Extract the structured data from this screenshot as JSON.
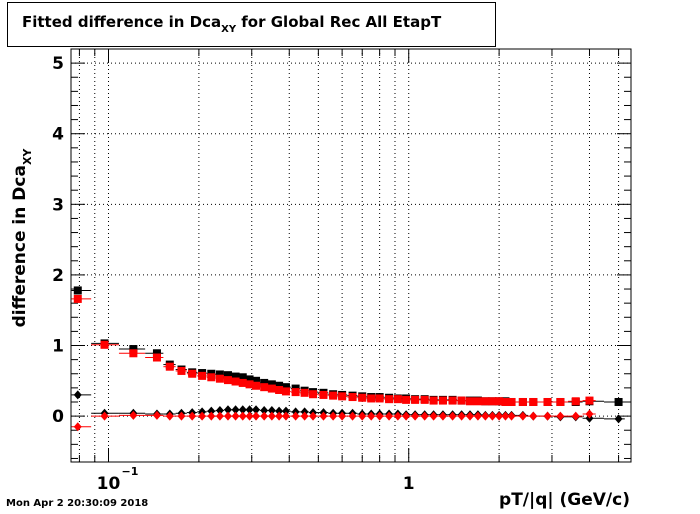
{
  "chart_data": {
    "type": "scatter",
    "title_main": "Fitted difference in Dca",
    "title_sub": "XY",
    "title_rest": " for Global Rec All EtapT",
    "ylabel_main": "difference in Dca",
    "ylabel_sub": "XY",
    "xlabel": "pT/|q| (GeV/c)",
    "x_scale": "log",
    "xlim": [
      0.075,
      5.5
    ],
    "ylim": [
      -0.65,
      5.2
    ],
    "grid": true,
    "y_ticks": [
      0,
      1,
      2,
      3,
      4,
      5
    ],
    "y_tick_labels": [
      "0",
      "1",
      "2",
      "3",
      "4",
      "5"
    ],
    "x_tick_labels": [
      {
        "value": 0.1,
        "base": "10",
        "exp": "−1"
      },
      {
        "value": 1,
        "base": "1",
        "exp": ""
      }
    ],
    "series": [
      {
        "marker": "square",
        "color": "#000000",
        "x": [
          0.079,
          0.097,
          0.121,
          0.145,
          0.16,
          0.175,
          0.19,
          0.205,
          0.22,
          0.235,
          0.25,
          0.265,
          0.28,
          0.295,
          0.31,
          0.33,
          0.35,
          0.37,
          0.39,
          0.42,
          0.45,
          0.48,
          0.52,
          0.56,
          0.6,
          0.65,
          0.7,
          0.75,
          0.8,
          0.86,
          0.92,
          0.98,
          1.05,
          1.13,
          1.21,
          1.3,
          1.4,
          1.5,
          1.6,
          1.7,
          1.8,
          1.9,
          2.0,
          2.1,
          2.2,
          2.4,
          2.6,
          2.9,
          3.2,
          3.6,
          4.0,
          5.0
        ],
        "y": [
          1.78,
          1.03,
          0.95,
          0.89,
          0.73,
          0.66,
          0.62,
          0.61,
          0.6,
          0.59,
          0.58,
          0.56,
          0.55,
          0.52,
          0.5,
          0.47,
          0.45,
          0.43,
          0.41,
          0.39,
          0.36,
          0.34,
          0.33,
          0.31,
          0.3,
          0.29,
          0.28,
          0.27,
          0.27,
          0.26,
          0.25,
          0.25,
          0.24,
          0.24,
          0.23,
          0.23,
          0.23,
          0.22,
          0.22,
          0.22,
          0.21,
          0.21,
          0.21,
          0.21,
          0.2,
          0.2,
          0.2,
          0.2,
          0.2,
          0.2,
          0.21,
          0.2
        ]
      },
      {
        "marker": "square",
        "color": "#ff0000",
        "x": [
          0.079,
          0.097,
          0.121,
          0.145,
          0.16,
          0.175,
          0.19,
          0.205,
          0.22,
          0.235,
          0.25,
          0.265,
          0.28,
          0.295,
          0.31,
          0.33,
          0.35,
          0.37,
          0.39,
          0.42,
          0.45,
          0.48,
          0.52,
          0.56,
          0.6,
          0.65,
          0.7,
          0.75,
          0.8,
          0.86,
          0.92,
          0.98,
          1.05,
          1.13,
          1.21,
          1.3,
          1.4,
          1.5,
          1.6,
          1.7,
          1.8,
          1.9,
          2.0,
          2.1,
          2.2,
          2.4,
          2.6,
          2.9,
          3.2,
          3.6,
          4.0
        ],
        "y": [
          1.66,
          1.01,
          0.89,
          0.83,
          0.7,
          0.64,
          0.6,
          0.57,
          0.55,
          0.53,
          0.51,
          0.49,
          0.47,
          0.45,
          0.43,
          0.41,
          0.39,
          0.37,
          0.35,
          0.34,
          0.33,
          0.31,
          0.3,
          0.29,
          0.28,
          0.27,
          0.26,
          0.25,
          0.25,
          0.24,
          0.24,
          0.23,
          0.23,
          0.23,
          0.22,
          0.22,
          0.22,
          0.22,
          0.21,
          0.21,
          0.21,
          0.21,
          0.21,
          0.2,
          0.2,
          0.2,
          0.2,
          0.2,
          0.2,
          0.21,
          0.22
        ]
      },
      {
        "marker": "diamond",
        "color": "#000000",
        "x": [
          0.079,
          0.097,
          0.121,
          0.145,
          0.16,
          0.175,
          0.19,
          0.205,
          0.22,
          0.235,
          0.25,
          0.265,
          0.28,
          0.295,
          0.31,
          0.33,
          0.35,
          0.37,
          0.39,
          0.42,
          0.45,
          0.48,
          0.52,
          0.56,
          0.6,
          0.65,
          0.7,
          0.75,
          0.8,
          0.86,
          0.92,
          0.98,
          1.05,
          1.13,
          1.21,
          1.3,
          1.4,
          1.5,
          1.6,
          1.7,
          1.8,
          1.9,
          2.0,
          2.1,
          2.2,
          2.4,
          2.6,
          2.9,
          3.2,
          3.6,
          4.0,
          5.0
        ],
        "y": [
          0.3,
          0.04,
          0.04,
          0.03,
          0.03,
          0.04,
          0.05,
          0.06,
          0.07,
          0.08,
          0.09,
          0.09,
          0.09,
          0.09,
          0.09,
          0.08,
          0.08,
          0.07,
          0.07,
          0.06,
          0.06,
          0.05,
          0.05,
          0.04,
          0.04,
          0.04,
          0.03,
          0.03,
          0.03,
          0.03,
          0.03,
          0.02,
          0.02,
          0.02,
          0.02,
          0.02,
          0.02,
          0.02,
          0.02,
          0.02,
          0.01,
          0.01,
          0.01,
          0.01,
          0.01,
          0.01,
          0.0,
          0.0,
          -0.01,
          -0.01,
          -0.03,
          -0.04
        ]
      },
      {
        "marker": "diamond",
        "color": "#ff0000",
        "x": [
          0.079,
          0.097,
          0.121,
          0.145,
          0.16,
          0.175,
          0.19,
          0.205,
          0.22,
          0.235,
          0.25,
          0.265,
          0.28,
          0.295,
          0.31,
          0.33,
          0.35,
          0.37,
          0.39,
          0.42,
          0.45,
          0.48,
          0.52,
          0.56,
          0.6,
          0.65,
          0.7,
          0.75,
          0.8,
          0.86,
          0.92,
          0.98,
          1.05,
          1.13,
          1.21,
          1.3,
          1.4,
          1.5,
          1.6,
          1.7,
          1.8,
          1.9,
          2.0,
          2.1,
          2.2,
          2.4,
          2.6,
          2.9,
          3.2,
          3.6,
          4.0
        ],
        "y": [
          -0.15,
          0.0,
          0.01,
          0.01,
          0.0,
          0.0,
          0.0,
          0.0,
          0.0,
          0.0,
          0.0,
          0.0,
          0.0,
          0.0,
          0.0,
          0.0,
          0.0,
          0.0,
          0.0,
          0.0,
          0.0,
          0.0,
          0.0,
          0.0,
          0.0,
          0.0,
          0.0,
          0.0,
          0.0,
          0.0,
          0.0,
          0.0,
          0.0,
          0.0,
          0.0,
          0.0,
          0.0,
          0.0,
          0.0,
          0.0,
          0.0,
          0.0,
          0.0,
          0.0,
          0.0,
          0.0,
          0.0,
          0.0,
          0.0,
          0.0,
          0.03
        ]
      }
    ]
  },
  "timestamp": "Mon Apr  2 20:30:09 2018"
}
